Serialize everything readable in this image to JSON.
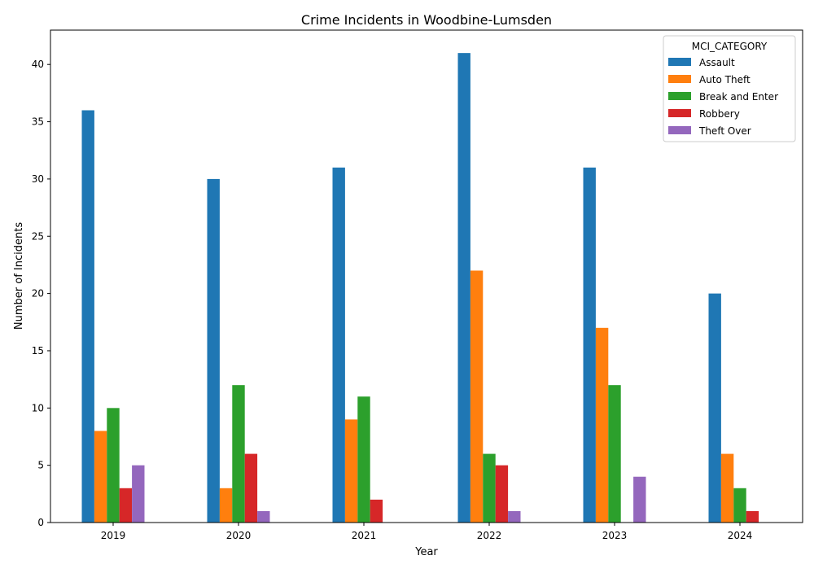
{
  "chart_data": {
    "type": "bar",
    "title": "Crime Incidents in Woodbine-Lumsden",
    "xlabel": "Year",
    "ylabel": "Number of Incidents",
    "categories": [
      "2019",
      "2020",
      "2021",
      "2022",
      "2023",
      "2024"
    ],
    "ylim": [
      0,
      43
    ],
    "yticks": [
      0,
      5,
      10,
      15,
      20,
      25,
      30,
      35,
      40
    ],
    "grid": false,
    "legend": {
      "title": "MCI_CATEGORY",
      "placement": "top-right"
    },
    "series": [
      {
        "name": "Assault",
        "color": "#1f77b4",
        "values": [
          36,
          30,
          31,
          41,
          31,
          20
        ]
      },
      {
        "name": "Auto Theft",
        "color": "#ff7f0e",
        "values": [
          8,
          3,
          9,
          22,
          17,
          6
        ]
      },
      {
        "name": "Break and Enter",
        "color": "#2ca02c",
        "values": [
          10,
          12,
          11,
          6,
          12,
          3
        ]
      },
      {
        "name": "Robbery",
        "color": "#d62728",
        "values": [
          3,
          6,
          2,
          5,
          0,
          1
        ]
      },
      {
        "name": "Theft Over",
        "color": "#9467bd",
        "values": [
          5,
          1,
          0,
          1,
          4,
          0
        ]
      }
    ]
  }
}
